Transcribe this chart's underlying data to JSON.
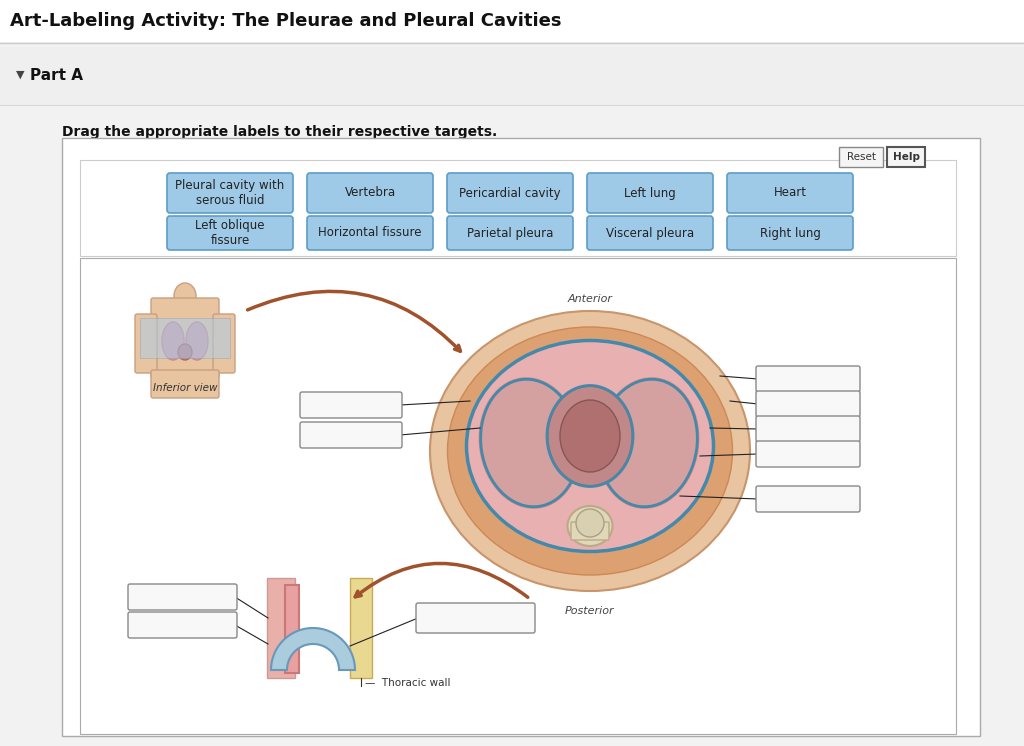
{
  "title": "Art-Labeling Activity: The Pleurae and Pleural Cavities",
  "part_label": "Part A",
  "instruction": "Drag the appropriate labels to their respective targets.",
  "label_buttons_row1": [
    "Pleural cavity with\nserous fluid",
    "Vertebra",
    "Pericardial cavity",
    "Left lung",
    "Heart"
  ],
  "label_buttons_row2": [
    "Left oblique\nfissure",
    "Horizontal fissure",
    "Parietal pleura",
    "Visceral pleura",
    "Right lung"
  ],
  "button_bg": "#9ecae8",
  "button_border": "#5b9dc8",
  "button_text_color": "#222222",
  "title_color": "#111111",
  "title_fontsize": 13,
  "part_fontsize": 11,
  "instruction_fontsize": 10,
  "button_fontsize": 8.5,
  "anterior_label": "Anterior",
  "posterior_label": "Posterior",
  "inferior_view_label": "Inferior view",
  "thoracic_wall_label": "Thoracic wall",
  "bg_page": "#f2f2f2",
  "bg_white": "#ffffff",
  "bg_parta": "#efefef",
  "border_light": "#cccccc",
  "border_mid": "#aaaaaa"
}
